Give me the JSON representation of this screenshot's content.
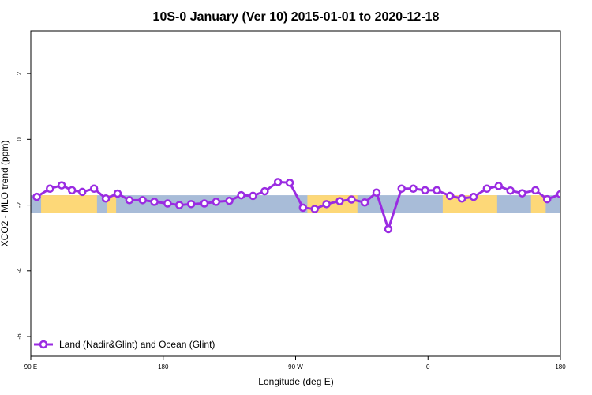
{
  "chart_data": {
    "type": "line",
    "title": "10S-0 January (Ver 10)   2015-01-01 to 2020-12-18",
    "xlabel": "Longitude (deg E)",
    "ylabel": "XCO2 - MLO trend (ppm)",
    "xlim": [
      90,
      450
    ],
    "ylim": [
      -6.6,
      3.3
    ],
    "x_ticks": [
      {
        "value": 90,
        "label": "90 E"
      },
      {
        "value": 180,
        "label": "180"
      },
      {
        "value": 270,
        "label": "90 W"
      },
      {
        "value": 360,
        "label": "0"
      },
      {
        "value": 450,
        "label": "180"
      }
    ],
    "y_ticks": [
      {
        "value": 2,
        "label": "2"
      },
      {
        "value": 0,
        "label": "0"
      },
      {
        "value": -2,
        "label": "-2"
      },
      {
        "value": -4,
        "label": "-4"
      },
      {
        "value": -6,
        "label": "-6"
      }
    ],
    "band": {
      "y_low": -2.25,
      "y_high": -1.7,
      "ocean_color": "#a8bcd8",
      "land_color": "#fdd878"
    },
    "land_segments": [
      [
        97,
        135
      ],
      [
        142,
        148
      ],
      [
        278,
        312
      ],
      [
        370,
        407
      ],
      [
        430,
        440
      ]
    ],
    "legend": {
      "position": "bottom-left"
    },
    "series": [
      {
        "name": "Land (Nadir&Glint) and Ocean (Glint)",
        "color": "#9a2be2",
        "x": [
          94,
          103,
          111,
          118,
          125,
          133,
          141,
          149,
          157,
          166,
          174,
          183,
          191,
          199,
          208,
          216,
          225,
          233,
          241,
          249,
          258,
          266,
          275,
          283,
          291,
          300,
          308,
          317,
          325,
          333,
          342,
          350,
          358,
          366,
          375,
          383,
          391,
          400,
          408,
          416,
          424,
          433,
          441,
          450
        ],
        "values": [
          -1.75,
          -1.5,
          -1.4,
          -1.55,
          -1.6,
          -1.5,
          -1.8,
          -1.65,
          -1.85,
          -1.85,
          -1.9,
          -1.95,
          -2.0,
          -1.97,
          -1.95,
          -1.9,
          -1.87,
          -1.7,
          -1.72,
          -1.58,
          -1.3,
          -1.32,
          -2.08,
          -2.12,
          -1.97,
          -1.88,
          -1.83,
          -1.92,
          -1.62,
          -2.73,
          -1.5,
          -1.5,
          -1.55,
          -1.55,
          -1.72,
          -1.8,
          -1.75,
          -1.5,
          -1.42,
          -1.56,
          -1.64,
          -1.55,
          -1.82,
          -1.67
        ]
      }
    ]
  }
}
